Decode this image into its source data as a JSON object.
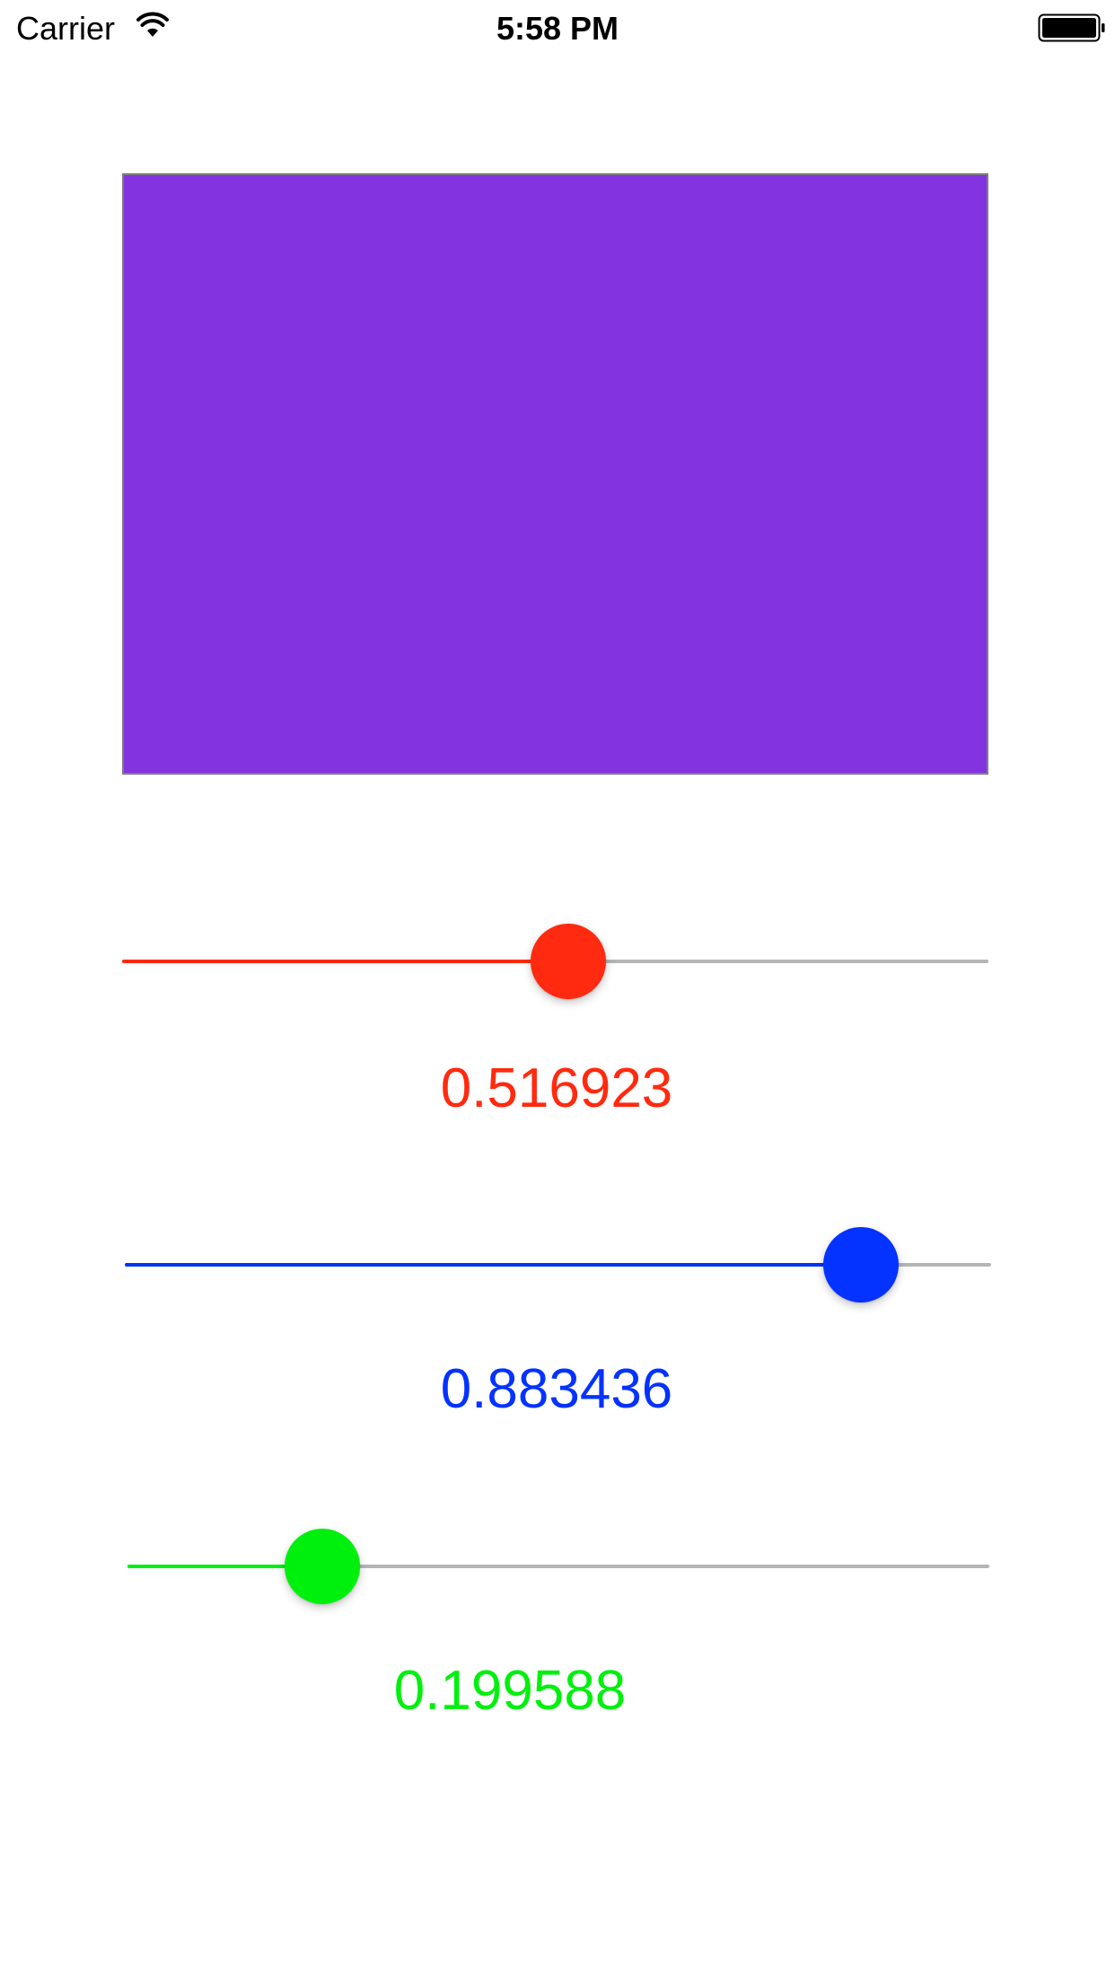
{
  "status_bar": {
    "carrier": "Carrier",
    "time": "5:58 PM",
    "icons": [
      "wifi-icon",
      "battery-icon"
    ]
  },
  "preview": {
    "color": "#8334e0"
  },
  "sliders": [
    {
      "id": "red",
      "value": 0.516923,
      "value_label": "0.516923",
      "color": "#ff2a0f"
    },
    {
      "id": "blue",
      "value": 0.883436,
      "value_label": "0.883436",
      "color": "#0432ff"
    },
    {
      "id": "green",
      "value": 0.199588,
      "value_label": "0.199588",
      "color": "#00f00e"
    }
  ]
}
